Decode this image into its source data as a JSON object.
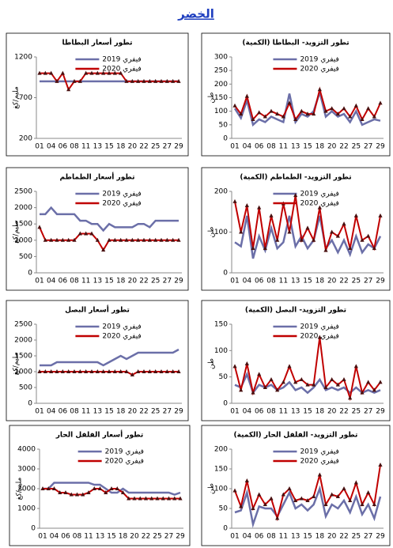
{
  "page_title": "الخضر",
  "chart_data": [
    {
      "type": "line",
      "title": "تطور التزويد- البطاطا (الكمية)",
      "ylabel": "طن",
      "categories": [
        "01",
        null,
        "04",
        null,
        "06",
        null,
        "08",
        null,
        "11",
        null,
        "13",
        null,
        "15",
        null,
        "18",
        null,
        "20",
        null,
        "22",
        null,
        "25",
        null,
        "27",
        null,
        "29"
      ],
      "series": [
        {
          "name": "فيفري 2019",
          "color": "#6b6fa8",
          "values": [
            110,
            75,
            140,
            50,
            70,
            60,
            80,
            70,
            60,
            165,
            60,
            90,
            80,
            100,
            170,
            80,
            100,
            80,
            90,
            60,
            100,
            50,
            60,
            70,
            65
          ]
        },
        {
          "name": "فيفري 2020",
          "color": "#c00000",
          "values": [
            120,
            90,
            155,
            70,
            95,
            80,
            100,
            90,
            80,
            130,
            70,
            100,
            90,
            90,
            180,
            100,
            110,
            90,
            110,
            80,
            120,
            70,
            110,
            80,
            130
          ]
        }
      ],
      "ylim": [
        0,
        300
      ],
      "yticks": [
        0,
        50,
        100,
        150,
        200,
        250,
        300
      ]
    },
    {
      "type": "line",
      "title": "تطور أسعار البطاطا",
      "ylabel": "مليم/كغ",
      "categories": [
        "01",
        null,
        "04",
        null,
        "06",
        null,
        "08",
        null,
        "11",
        null,
        "13",
        null,
        "15",
        null,
        "18",
        null,
        "20",
        null,
        "22",
        null,
        "25",
        null,
        "27",
        null,
        "29"
      ],
      "series": [
        {
          "name": "فيفري 2019",
          "color": "#6b6fa8",
          "values": [
            900,
            900,
            900,
            900,
            900,
            900,
            900,
            900,
            900,
            900,
            900,
            900,
            900,
            900,
            900,
            900,
            900,
            900,
            900,
            900,
            900,
            900,
            900,
            900,
            900
          ]
        },
        {
          "name": "فيفري 2020",
          "color": "#c00000",
          "values": [
            1000,
            1000,
            1000,
            900,
            1000,
            800,
            900,
            900,
            1000,
            1000,
            1000,
            1000,
            1000,
            1000,
            1000,
            900,
            900,
            900,
            900,
            900,
            900,
            900,
            900,
            900,
            900
          ]
        }
      ],
      "ylim": [
        200,
        1200
      ],
      "yticks": [
        200,
        700,
        1200
      ]
    },
    {
      "type": "line",
      "title": "تطور التزويد- الطماطم (الكمية)",
      "ylabel": "طن",
      "categories": [
        "01",
        null,
        "04",
        null,
        "06",
        null,
        "08",
        null,
        "11",
        null,
        "13",
        null,
        "15",
        null,
        "18",
        null,
        "20",
        null,
        "22",
        null,
        "25",
        null,
        "27",
        null,
        "29"
      ],
      "series": [
        {
          "name": "فيفري 2019",
          "color": "#6b6fa8",
          "values": [
            75,
            65,
            140,
            35,
            90,
            55,
            110,
            60,
            75,
            140,
            65,
            90,
            60,
            80,
            140,
            60,
            80,
            50,
            80,
            45,
            90,
            50,
            70,
            60,
            90
          ]
        },
        {
          "name": "فيفري 2020",
          "color": "#c00000",
          "values": [
            175,
            100,
            165,
            60,
            160,
            60,
            140,
            80,
            170,
            100,
            190,
            80,
            110,
            80,
            160,
            55,
            100,
            90,
            120,
            60,
            140,
            80,
            90,
            60,
            140
          ]
        }
      ],
      "ylim": [
        0,
        200
      ],
      "yticks": [
        0,
        100,
        200
      ]
    },
    {
      "type": "line",
      "title": "تطور أسعار الطماطم",
      "ylabel": "مليم/كغ",
      "categories": [
        "01",
        null,
        "04",
        null,
        "06",
        null,
        "08",
        null,
        "11",
        null,
        "13",
        null,
        "15",
        null,
        "18",
        null,
        "20",
        null,
        "22",
        null,
        "25",
        null,
        "27",
        null,
        "29"
      ],
      "series": [
        {
          "name": "فيفري 2019",
          "color": "#6b6fa8",
          "values": [
            1800,
            1800,
            2000,
            1800,
            1800,
            1800,
            1800,
            1600,
            1600,
            1500,
            1500,
            1300,
            1500,
            1400,
            1400,
            1400,
            1400,
            1500,
            1500,
            1400,
            1600,
            1600,
            1600,
            1600,
            1600
          ]
        },
        {
          "name": "فيفري 2020",
          "color": "#c00000",
          "values": [
            1400,
            1000,
            1000,
            1000,
            1000,
            1000,
            1000,
            1200,
            1200,
            1200,
            1000,
            700,
            1000,
            1000,
            1000,
            1000,
            1000,
            1000,
            1000,
            1000,
            1000,
            1000,
            1000,
            1000,
            1000
          ]
        }
      ],
      "ylim": [
        0,
        2500
      ],
      "yticks": [
        0,
        500,
        1000,
        1500,
        2000,
        2500
      ]
    },
    {
      "type": "line",
      "title": "تطور التزويد- البصل (الكمية)",
      "ylabel": "طن",
      "categories": [
        "01",
        null,
        "04",
        null,
        "06",
        null,
        "08",
        null,
        "11",
        null,
        "13",
        null,
        "15",
        null,
        "18",
        null,
        "20",
        null,
        "22",
        null,
        "25",
        null,
        "27",
        null,
        "29"
      ],
      "series": [
        {
          "name": "فيفري 2019",
          "color": "#6b6fa8",
          "values": [
            35,
            30,
            55,
            20,
            35,
            30,
            35,
            25,
            30,
            40,
            25,
            30,
            20,
            30,
            45,
            25,
            30,
            25,
            30,
            20,
            30,
            20,
            25,
            20,
            25
          ]
        },
        {
          "name": "فيفري 2020",
          "color": "#c00000",
          "values": [
            70,
            25,
            75,
            20,
            55,
            30,
            45,
            25,
            40,
            70,
            40,
            45,
            35,
            35,
            125,
            30,
            45,
            35,
            45,
            10,
            70,
            20,
            40,
            25,
            40
          ]
        }
      ],
      "ylim": [
        0,
        150
      ],
      "yticks": [
        0,
        50,
        100,
        150
      ]
    },
    {
      "type": "line",
      "title": "تطور أسعار البصل",
      "ylabel": "مليم/كغ",
      "categories": [
        "01",
        null,
        "04",
        null,
        "06",
        null,
        "08",
        null,
        "11",
        null,
        "13",
        null,
        "15",
        null,
        "18",
        null,
        "20",
        null,
        "22",
        null,
        "25",
        null,
        "27",
        null,
        "29"
      ],
      "series": [
        {
          "name": "فيفري 2019",
          "color": "#6b6fa8",
          "values": [
            1200,
            1200,
            1200,
            1300,
            1300,
            1300,
            1300,
            1300,
            1300,
            1300,
            1300,
            1200,
            1300,
            1400,
            1500,
            1400,
            1500,
            1600,
            1600,
            1600,
            1600,
            1600,
            1600,
            1600,
            1700
          ]
        },
        {
          "name": "فيفري 2020",
          "color": "#c00000",
          "values": [
            1000,
            1000,
            1000,
            1000,
            1000,
            1000,
            1000,
            1000,
            1000,
            1000,
            1000,
            1000,
            1000,
            1000,
            1000,
            1000,
            900,
            1000,
            1000,
            1000,
            1000,
            1000,
            1000,
            1000,
            1000
          ]
        }
      ],
      "ylim": [
        0,
        2500
      ],
      "yticks": [
        0,
        500,
        1000,
        1500,
        2000,
        2500
      ]
    },
    {
      "type": "line",
      "title": "تطور التزويد- الفلفل الحار (الكمية)",
      "ylabel": "طن",
      "categories": [
        "01",
        null,
        "04",
        null,
        "06",
        null,
        "08",
        null,
        "11",
        null,
        "13",
        null,
        "15",
        null,
        "18",
        null,
        "20",
        null,
        "22",
        null,
        "25",
        null,
        "27",
        null,
        "29"
      ],
      "series": [
        {
          "name": "فيفري 2019",
          "color": "#6b6fa8",
          "values": [
            40,
            45,
            90,
            10,
            55,
            50,
            50,
            30,
            60,
            90,
            50,
            60,
            45,
            60,
            100,
            30,
            60,
            50,
            70,
            40,
            80,
            35,
            60,
            25,
            80
          ]
        },
        {
          "name": "فيفري 2020",
          "color": "#c00000",
          "values": [
            95,
            55,
            120,
            50,
            85,
            60,
            75,
            25,
            85,
            100,
            70,
            75,
            70,
            80,
            135,
            60,
            85,
            80,
            100,
            70,
            115,
            60,
            90,
            60,
            160
          ]
        }
      ],
      "ylim": [
        0,
        200
      ],
      "yticks": [
        0,
        50,
        100,
        150,
        200
      ]
    },
    {
      "type": "line",
      "title": "تطور أسعار الفلفل الحار",
      "ylabel": "مليم/كغ",
      "categories": [
        "01",
        null,
        "04",
        null,
        "06",
        null,
        "08",
        null,
        "11",
        null,
        "13",
        null,
        "15",
        null,
        "18",
        null,
        "20",
        null,
        "22",
        null,
        "25",
        null,
        "27",
        null,
        "29"
      ],
      "series": [
        {
          "name": "فيفري 2019",
          "color": "#6b6fa8",
          "values": [
            2000,
            2000,
            2300,
            2300,
            2300,
            2300,
            2300,
            2300,
            2300,
            2200,
            2200,
            2000,
            1800,
            1800,
            2000,
            1800,
            1800,
            1800,
            1800,
            1800,
            1800,
            1800,
            1800,
            1700,
            1800
          ]
        },
        {
          "name": "فيفري 2020",
          "color": "#c00000",
          "values": [
            2000,
            2000,
            2000,
            1800,
            1800,
            1700,
            1700,
            1700,
            1800,
            2000,
            2000,
            1800,
            2000,
            2000,
            1800,
            1500,
            1500,
            1500,
            1500,
            1500,
            1500,
            1500,
            1500,
            1500,
            1500
          ]
        }
      ],
      "ylim": [
        0,
        4000
      ],
      "yticks": [
        0,
        1000,
        2000,
        3000,
        4000
      ]
    }
  ]
}
